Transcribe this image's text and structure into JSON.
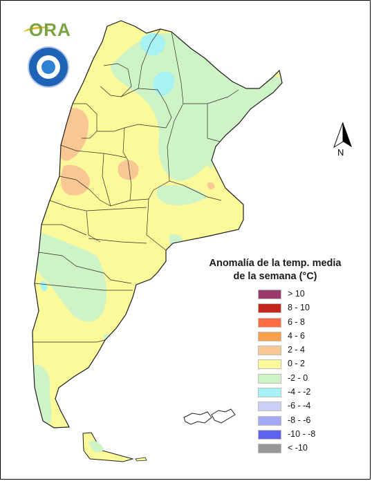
{
  "legend": {
    "title_line1": "Anomalía de la temp. media",
    "title_line2": "de la semana (°C)",
    "items": [
      {
        "label": "> 10",
        "color": "#9a3a6c"
      },
      {
        "label": "8 - 10",
        "color": "#c2271b"
      },
      {
        "label": "6 - 8",
        "color": "#fb6b44"
      },
      {
        "label": "4 - 6",
        "color": "#f8a04e"
      },
      {
        "label": "2 - 4",
        "color": "#f9c793"
      },
      {
        "label": "0 - 2",
        "color": "#fcf99a"
      },
      {
        "label": "-2 - 0",
        "color": "#cdf3c6"
      },
      {
        "label": "-4 - -2",
        "color": "#a7f2f2"
      },
      {
        "label": "-6 - -4",
        "color": "#ccd0f6"
      },
      {
        "label": "-8 - -6",
        "color": "#a3a8f3"
      },
      {
        "label": "-10 - -8",
        "color": "#6062f0"
      },
      {
        "label": "< -10",
        "color": "#979797"
      }
    ]
  },
  "north_label": "N",
  "logo": {
    "text": "ORA",
    "text_color": "#7aa341",
    "accent": "#f0b21a"
  },
  "seal": {
    "primary": "#1f63b6",
    "accent": "#2d82d4"
  },
  "map_colors": {
    "base": "#fcf99a",
    "cool": "#cdf3c6",
    "cold": "#a7f2f2",
    "warm": "#f9c793",
    "hot_spot": "#f9c793"
  }
}
